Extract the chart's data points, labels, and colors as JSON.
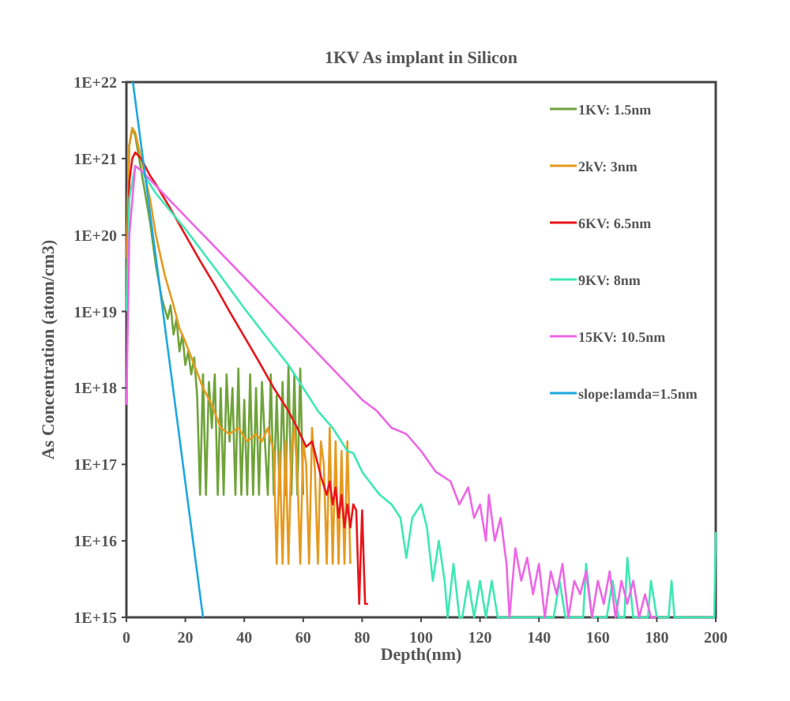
{
  "chart_data": {
    "type": "line",
    "title": "1KV As implant in Silicon",
    "xlabel": "Depth(nm)",
    "ylabel": "As Concentration (atom/cm3)",
    "log": "y",
    "legend": "top right",
    "xlim": [
      0,
      200
    ],
    "xticks": [
      0,
      20,
      40,
      60,
      80,
      100,
      120,
      140,
      160,
      180,
      200
    ],
    "ylim": [
      1000000000000000.0,
      1e+22
    ],
    "yticks": [
      {
        "value": 1000000000000000.0,
        "label": "1E+15"
      },
      {
        "value": 1e+16,
        "label": "1E+16"
      },
      {
        "value": 1e+17,
        "label": "1E+17"
      },
      {
        "value": 1e+18,
        "label": "1E+18"
      },
      {
        "value": 1e+19,
        "label": "1E+19"
      },
      {
        "value": 1e+20,
        "label": "1E+20"
      },
      {
        "value": 1e+21,
        "label": "1E+21"
      },
      {
        "value": 1e+22,
        "label": "1E+22"
      }
    ],
    "series": [
      {
        "name": "1KV: 1.5nm",
        "color": "#70a33a",
        "x": [
          0,
          0.5,
          1,
          2,
          3,
          5,
          8,
          10,
          12,
          14,
          15,
          16,
          17,
          18,
          19,
          20,
          21,
          22,
          23,
          24,
          25,
          26,
          27,
          28,
          29,
          30,
          31,
          32,
          33,
          34,
          35,
          36,
          37,
          38,
          39,
          40,
          41,
          42,
          43,
          44,
          45,
          46,
          47,
          48,
          49,
          50,
          51,
          52,
          53,
          54,
          55,
          56,
          57,
          58,
          59,
          60
        ],
        "values": [
          2e+19,
          3e+20,
          1.5e+21,
          2.5e+21,
          2e+21,
          7e+20,
          1.5e+20,
          4e+19,
          1.5e+19,
          8e+18,
          1.2e+19,
          5e+18,
          8e+18,
          3e+18,
          5e+18,
          2e+18,
          3e+18,
          1.5e+18,
          2.5e+18,
          8e+17,
          4e+16,
          1.5e+18,
          4e+16,
          1.2e+18,
          3e+17,
          1.5e+18,
          4e+16,
          1e+18,
          4e+16,
          1.5e+18,
          2e+17,
          1e+18,
          4e+16,
          1.8e+18,
          4e+16,
          7e+17,
          4e+16,
          1.5e+18,
          4e+16,
          1e+18,
          4e+16,
          1.2e+18,
          2e+17,
          4e+16,
          1.5e+18,
          4e+16,
          8e+17,
          4e+16,
          1.2e+18,
          4e+16,
          2e+18,
          4e+16,
          1.5e+18,
          4e+16,
          1.8e+18,
          4e+16
        ]
      },
      {
        "name": "2kV: 3nm",
        "color": "#e69a20",
        "x": [
          0,
          1,
          2,
          3,
          5,
          8,
          10,
          13,
          16,
          18,
          20,
          23,
          26,
          29,
          32,
          35,
          38,
          41,
          44,
          46,
          48,
          50,
          51,
          52,
          53,
          54,
          55,
          56,
          57,
          58,
          59,
          60,
          61,
          62,
          63,
          64,
          65,
          66,
          67,
          68,
          69,
          70,
          71,
          72,
          73,
          74,
          75,
          76
        ],
        "values": [
          5e+19,
          1.5e+21,
          2.5e+21,
          2.2e+21,
          1e+21,
          3e+20,
          1e+20,
          3e+19,
          1.2e+19,
          6e+18,
          4e+18,
          2e+18,
          1e+18,
          6e+17,
          3e+17,
          2.5e+17,
          3e+17,
          2e+17,
          2.5e+17,
          2e+17,
          3e+17,
          1.5e+17,
          5000000000000000.0,
          1.5e+17,
          5000000000000000.0,
          2e+17,
          5000000000000000.0,
          1.5e+17,
          3e+17,
          8e+16,
          5000000000000000.0,
          2e+17,
          1e+17,
          5000000000000000.0,
          3e+17,
          8e+16,
          5000000000000000.0,
          2e+17,
          1e+17,
          5000000000000000.0,
          3e+17,
          5000000000000000.0,
          2e+17,
          5000000000000000.0,
          1.5e+17,
          5000000000000000.0,
          2e+17,
          5000000000000000.0
        ]
      },
      {
        "name": "6KV: 6.5nm",
        "color": "#e8161b",
        "x": [
          0,
          1,
          2,
          3,
          5,
          8,
          10,
          15,
          20,
          25,
          30,
          35,
          40,
          45,
          50,
          55,
          58,
          61,
          63,
          65,
          66,
          68,
          69,
          70,
          71,
          72,
          73,
          74,
          75,
          76,
          77,
          78,
          79,
          80,
          81,
          82
        ],
        "values": [
          1e+19,
          5e+20,
          1e+21,
          1.2e+21,
          1e+21,
          6e+20,
          4.6e+20,
          2.2e+20,
          1e+20,
          4.6e+19,
          2.2e+19,
          1e+19,
          4.7e+18,
          2.2e+18,
          1e+18,
          5e+17,
          3e+17,
          1.7e+17,
          2e+17,
          1e+17,
          7e+16,
          4e+16,
          6e+16,
          3e+16,
          5e+16,
          2e+16,
          4e+16,
          1.5e+16,
          3e+16,
          1.5e+16,
          3e+16,
          2.5e+16,
          1500000000000000.0,
          2.5e+16,
          1500000000000000.0,
          1500000000000000.0
        ]
      },
      {
        "name": "9KV: 8nm",
        "color": "#3ee8b4",
        "x": [
          0,
          1,
          3,
          5,
          10,
          20,
          30,
          40,
          50,
          55,
          60,
          65,
          70,
          75,
          77,
          80,
          84,
          86,
          90,
          93,
          95,
          97,
          100,
          102,
          104,
          106,
          108,
          109,
          111,
          113,
          114,
          116,
          118,
          120,
          122,
          124,
          126,
          145,
          147,
          149,
          155,
          156,
          158,
          163,
          165,
          167,
          169,
          170,
          172,
          177,
          178,
          180,
          184,
          185,
          186,
          199.5,
          200
        ],
        "values": [
          1e+19,
          3e+20,
          8e+20,
          7e+20,
          3.5e+20,
          1.2e+20,
          3.7e+19,
          1.1e+19,
          3.5e+18,
          2e+18,
          1e+18,
          5e+17,
          3e+17,
          1.5e+17,
          1.4e+17,
          8e+16,
          5e+16,
          4e+16,
          3e+16,
          2e+16,
          6000000000000000.0,
          2e+16,
          3e+16,
          1.5e+16,
          3000000000000000.0,
          1e+16,
          3000000000000000.0,
          1000000000000000.0,
          5000000000000000.0,
          1000000000000000.0,
          1000000000000000.0,
          3000000000000000.0,
          1000000000000000.0,
          3000000000000000.0,
          1000000000000000.0,
          3000000000000000.0,
          1000000000000000.0,
          1000000000000000.0,
          3000000000000000.0,
          1000000000000000.0,
          1000000000000000.0,
          5000000000000000.0,
          1000000000000000.0,
          1000000000000000.0,
          3000000000000000.0,
          1000000000000000.0,
          1000000000000000.0,
          6000000000000000.0,
          1000000000000000.0,
          1000000000000000.0,
          3000000000000000.0,
          1000000000000000.0,
          1000000000000000.0,
          3000000000000000.0,
          1000000000000000.0,
          1000000000000000.0,
          1.3e+16
        ]
      },
      {
        "name": "15KV: 10.5nm",
        "color": "#ee66e6",
        "x": [
          0,
          1,
          3,
          5,
          20,
          40,
          60,
          80,
          85,
          90,
          95,
          100,
          105,
          110,
          113,
          116,
          118,
          120,
          122,
          123,
          125,
          127,
          129,
          130,
          132,
          134,
          136,
          138,
          140,
          142,
          144,
          146,
          148,
          150,
          152,
          154,
          156,
          158,
          160,
          162,
          164,
          166,
          168,
          170,
          172,
          174,
          176,
          178,
          180
        ],
        "values": [
          6e+17,
          1e+20,
          8e+20,
          7e+20,
          1.75e+20,
          2.8e+19,
          4.5e+18,
          7e+17,
          5e+17,
          3e+17,
          2.5e+17,
          1.5e+17,
          8e+16,
          6e+16,
          3e+16,
          5e+16,
          2e+16,
          3e+16,
          1e+16,
          4e+16,
          1e+16,
          2e+16,
          5000000000000000.0,
          1000000000000000.0,
          8000000000000000.0,
          3000000000000000.0,
          6000000000000000.0,
          2000000000000000.0,
          5000000000000000.0,
          1000000000000000.0,
          4000000000000000.0,
          2000000000000000.0,
          5000000000000000.0,
          1000000000000000.0,
          3000000000000000.0,
          2000000000000000.0,
          4000000000000000.0,
          1000000000000000.0,
          3000000000000000.0,
          1500000000000000.0,
          4000000000000000.0,
          1000000000000000.0,
          3000000000000000.0,
          1500000000000000.0,
          3000000000000000.0,
          1000000000000000.0,
          2000000000000000.0,
          1000000000000000.0,
          1000000000000000.0
        ]
      },
      {
        "name": "slope:lamda=1.5nm",
        "color": "#1ea8e0",
        "x": [
          2.2,
          26
        ],
        "values": [
          1e+22,
          1000000000000000.0
        ]
      }
    ]
  }
}
